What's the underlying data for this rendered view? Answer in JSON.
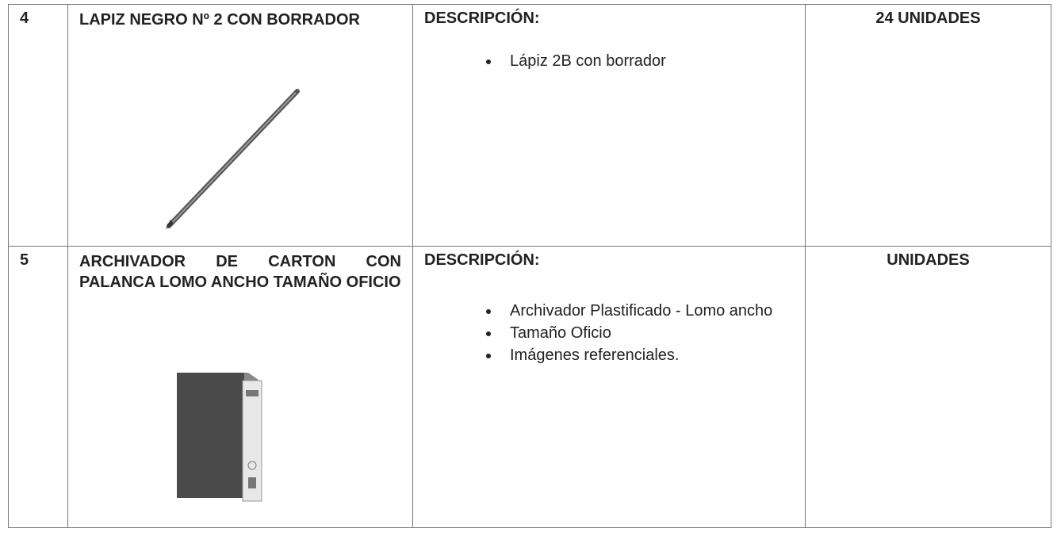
{
  "table": {
    "rows": [
      {
        "number": "4",
        "item": "LAPIZ NEGRO Nº 2 CON BORRADOR",
        "description_heading": "DESCRIPCIÓN:",
        "description": [
          "Lápiz 2B con borrador"
        ],
        "quantity": "24 UNIDADES"
      },
      {
        "number": "5",
        "item": "ARCHIVADOR DE CARTON CON PALANCA LOMO ANCHO TAMAÑO OFICIO",
        "description_heading": "DESCRIPCIÓN:",
        "description": [
          "Archivador Plastificado - Lomo ancho",
          "Tamaño Oficio",
          "Imágenes referenciales."
        ],
        "quantity": "UNIDADES"
      }
    ]
  }
}
